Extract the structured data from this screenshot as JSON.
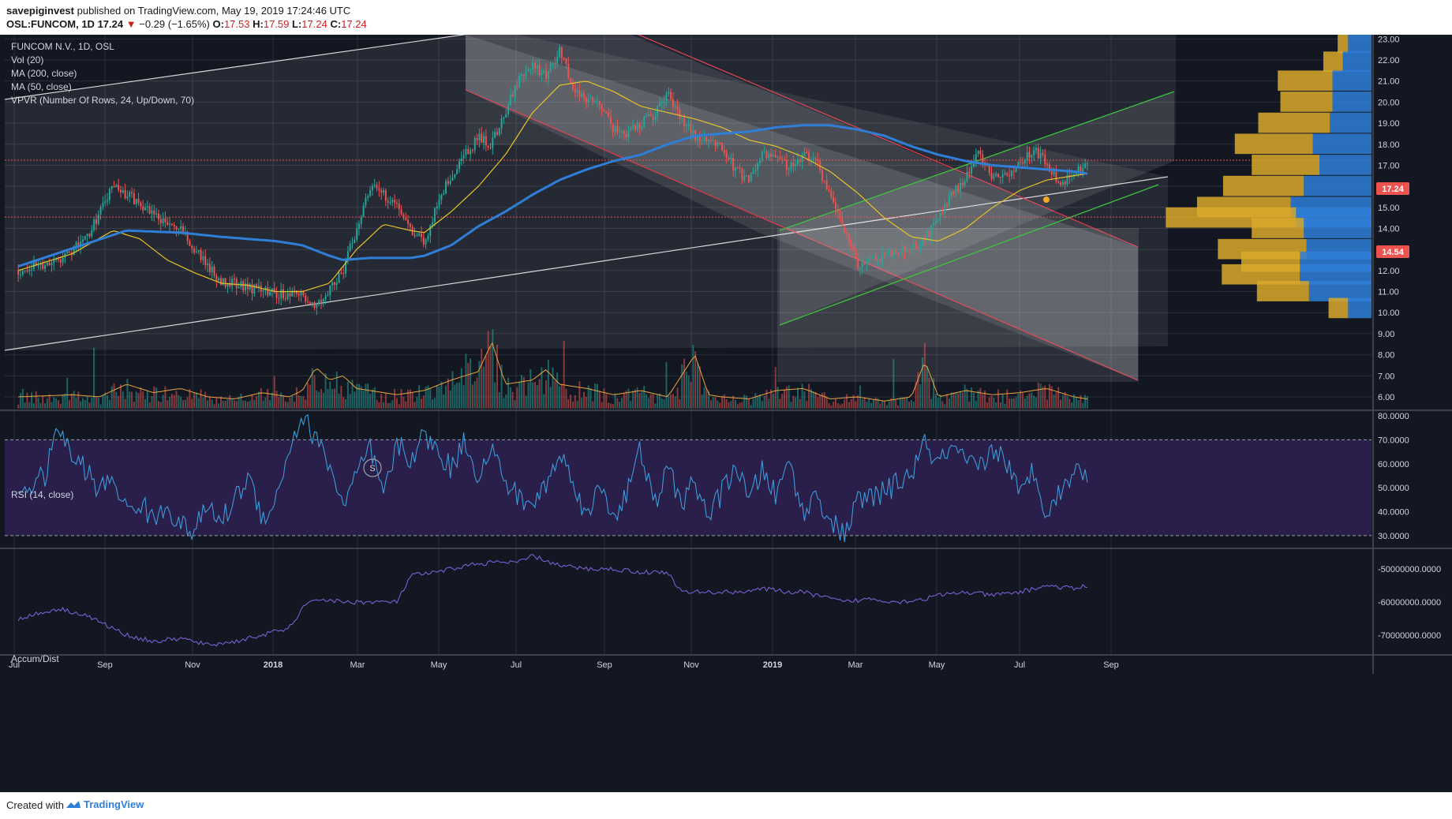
{
  "header": {
    "publisher": "savepiginvest",
    "published_text": "published on TradingView.com, May 19, 2019 17:24:46 UTC",
    "symbol_line": "OSL:FUNCOM, 1D",
    "last": "17.24",
    "change": "−0.29 (−1.65%)",
    "ohlc": {
      "o_label": "O:",
      "o": "17.53",
      "h_label": "H:",
      "h": "17.59",
      "l_label": "L:",
      "l": "17.24",
      "c_label": "C:",
      "c": "17.24"
    }
  },
  "legend": [
    "FUNCOM N.V., 1D, OSL",
    "Vol (20)",
    "MA (200, close)",
    "MA (50, close)",
    "VPVR (Number Of Rows, 24, Up/Down, 70)"
  ],
  "rsi_label": "RSI (14, close)",
  "ad_label": "Accum/Dist",
  "footer": {
    "created": "Created with",
    "brand": "TradingView"
  },
  "colors": {
    "background": "#131722",
    "up": "#26a69a",
    "down": "#ef5350",
    "ma200": "#2f7fd8",
    "ma50": "#e6c229",
    "vol_ma": "#e8a33d",
    "rsi": "#3d9ad9",
    "rsi_band": "#2a1f4a",
    "ad": "#7b5fd6",
    "vpvr_up": "#2f7fd8",
    "vpvr_down": "#d9a92a",
    "red_channel": "#e0394b",
    "green_channel": "#3ec43e"
  },
  "badges": {
    "current": "17.24",
    "poc": "14.54"
  },
  "marker_glyph": "S",
  "chart_data": {
    "type": "candlestick",
    "x_ticks": [
      "Jul",
      "Sep",
      "Nov",
      "2018",
      "Mar",
      "May",
      "Jul",
      "Sep",
      "Nov",
      "2019",
      "Mar",
      "May",
      "Jul",
      "Sep"
    ],
    "price_axis": {
      "min": 5.4,
      "max": 23.2,
      "ticks": [
        "23.00",
        "22.00",
        "21.00",
        "20.00",
        "19.00",
        "18.00",
        "17.00",
        "16.00",
        "15.00",
        "14.00",
        "13.00",
        "12.00",
        "11.00",
        "10.00",
        "9.00",
        "8.00",
        "7.00",
        "6.00"
      ]
    },
    "price_path": [
      [
        0,
        12.0
      ],
      [
        3,
        12.5
      ],
      [
        5,
        13.5
      ],
      [
        7,
        16.0
      ],
      [
        9,
        15.2
      ],
      [
        11,
        14.2
      ],
      [
        12,
        13.9
      ],
      [
        13,
        13.0
      ],
      [
        15,
        11.5
      ],
      [
        17,
        11.2
      ],
      [
        19,
        10.9
      ],
      [
        21,
        10.8
      ],
      [
        22,
        10.4
      ],
      [
        23,
        11.1
      ],
      [
        24,
        12.0
      ],
      [
        25,
        14.0
      ],
      [
        26,
        16.0
      ],
      [
        28,
        15.2
      ],
      [
        29,
        14.0
      ],
      [
        30,
        13.3
      ],
      [
        31,
        15.3
      ],
      [
        32,
        16.5
      ],
      [
        33,
        17.5
      ],
      [
        34,
        18.3
      ],
      [
        35,
        18.0
      ],
      [
        36,
        19.6
      ],
      [
        37,
        21.0
      ],
      [
        38,
        21.8
      ],
      [
        39,
        21.2
      ],
      [
        40,
        22.5
      ],
      [
        41,
        20.6
      ],
      [
        42,
        20.2
      ],
      [
        43,
        20.0
      ],
      [
        44,
        18.7
      ],
      [
        45,
        18.5
      ],
      [
        46,
        19.0
      ],
      [
        47,
        19.3
      ],
      [
        48,
        20.5
      ],
      [
        49,
        19.2
      ],
      [
        50,
        18.4
      ],
      [
        51,
        18.3
      ],
      [
        52,
        17.8
      ],
      [
        53,
        16.8
      ],
      [
        54,
        16.2
      ],
      [
        55,
        17.7
      ],
      [
        56,
        17.3
      ],
      [
        57,
        16.9
      ],
      [
        58,
        17.5
      ],
      [
        59,
        17.1
      ],
      [
        60,
        15.6
      ],
      [
        61,
        14.0
      ],
      [
        62,
        12.2
      ],
      [
        63,
        12.5
      ],
      [
        64,
        12.6
      ],
      [
        65,
        13.0
      ],
      [
        66,
        13.0
      ],
      [
        67,
        13.5
      ],
      [
        68,
        14.4
      ],
      [
        69,
        15.6
      ],
      [
        70,
        16.4
      ],
      [
        71,
        17.6
      ],
      [
        72,
        16.3
      ],
      [
        73,
        16.6
      ],
      [
        74,
        17.0
      ],
      [
        75,
        17.8
      ],
      [
        76,
        17.1
      ],
      [
        77,
        16.2
      ],
      [
        78,
        16.6
      ],
      [
        79,
        17.2
      ]
    ],
    "ma200_path": [
      [
        0,
        12.2
      ],
      [
        8,
        13.9
      ],
      [
        12,
        13.8
      ],
      [
        15,
        13.6
      ],
      [
        17,
        13.5
      ],
      [
        19,
        13.4
      ],
      [
        21,
        13.2
      ],
      [
        23,
        12.7
      ],
      [
        24,
        12.5
      ],
      [
        26,
        12.6
      ],
      [
        29,
        12.6
      ],
      [
        30,
        12.7
      ],
      [
        32,
        13.2
      ],
      [
        34,
        14.1
      ],
      [
        36,
        14.8
      ],
      [
        38,
        15.6
      ],
      [
        40,
        16.3
      ],
      [
        42,
        16.8
      ],
      [
        44,
        17.2
      ],
      [
        46,
        17.5
      ],
      [
        48,
        18.0
      ],
      [
        50,
        18.4
      ],
      [
        52,
        18.5
      ],
      [
        54,
        18.6
      ],
      [
        56,
        18.8
      ],
      [
        58,
        18.9
      ],
      [
        60,
        18.9
      ],
      [
        62,
        18.7
      ],
      [
        64,
        18.4
      ],
      [
        66,
        17.9
      ],
      [
        68,
        17.5
      ],
      [
        70,
        17.2
      ],
      [
        72,
        17.0
      ],
      [
        74,
        16.9
      ],
      [
        76,
        16.8
      ],
      [
        78,
        16.7
      ],
      [
        79,
        16.6
      ]
    ],
    "ma50_path": [
      [
        0,
        12.0
      ],
      [
        4,
        12.8
      ],
      [
        7,
        13.9
      ],
      [
        9,
        13.5
      ],
      [
        11,
        12.5
      ],
      [
        13,
        11.9
      ],
      [
        15,
        11.4
      ],
      [
        17,
        11.3
      ],
      [
        19,
        11.0
      ],
      [
        21,
        11.0
      ],
      [
        23,
        11.4
      ],
      [
        25,
        13.0
      ],
      [
        27,
        14.2
      ],
      [
        29,
        13.9
      ],
      [
        30,
        13.8
      ],
      [
        32,
        14.8
      ],
      [
        34,
        16.0
      ],
      [
        36,
        17.5
      ],
      [
        38,
        19.5
      ],
      [
        40,
        20.8
      ],
      [
        42,
        21.0
      ],
      [
        44,
        20.5
      ],
      [
        46,
        19.8
      ],
      [
        48,
        19.5
      ],
      [
        50,
        19.2
      ],
      [
        52,
        18.8
      ],
      [
        54,
        18.2
      ],
      [
        56,
        17.9
      ],
      [
        58,
        17.4
      ],
      [
        60,
        16.7
      ],
      [
        62,
        15.7
      ],
      [
        64,
        14.5
      ],
      [
        66,
        13.6
      ],
      [
        68,
        13.4
      ],
      [
        70,
        14.0
      ],
      [
        72,
        15.0
      ],
      [
        74,
        15.8
      ],
      [
        76,
        16.3
      ],
      [
        78,
        16.5
      ],
      [
        79,
        16.6
      ]
    ],
    "volume_path": [
      [
        0,
        6.0
      ],
      [
        4,
        6.1
      ],
      [
        6,
        6.0
      ],
      [
        8,
        6.6
      ],
      [
        10,
        6.2
      ],
      [
        12,
        6.4
      ],
      [
        14,
        6.0
      ],
      [
        16,
        5.9
      ],
      [
        18,
        6.2
      ],
      [
        20,
        6.0
      ],
      [
        21,
        6.3
      ],
      [
        22,
        7.4
      ],
      [
        23,
        6.8
      ],
      [
        24,
        7.0
      ],
      [
        25,
        6.4
      ],
      [
        26,
        6.3
      ],
      [
        28,
        6.1
      ],
      [
        30,
        6.3
      ],
      [
        32,
        6.8
      ],
      [
        34,
        7.2
      ],
      [
        35,
        8.6
      ],
      [
        36,
        6.6
      ],
      [
        38,
        6.8
      ],
      [
        39,
        7.3
      ],
      [
        40,
        6.6
      ],
      [
        42,
        6.4
      ],
      [
        44,
        6.1
      ],
      [
        46,
        6.3
      ],
      [
        48,
        6.0
      ],
      [
        50,
        8.0
      ],
      [
        51,
        6.1
      ],
      [
        52,
        6.0
      ],
      [
        54,
        5.9
      ],
      [
        56,
        6.3
      ],
      [
        58,
        6.4
      ],
      [
        60,
        5.9
      ],
      [
        62,
        6.0
      ],
      [
        64,
        5.8
      ],
      [
        66,
        6.0
      ],
      [
        67,
        7.7
      ],
      [
        68,
        6.0
      ],
      [
        70,
        6.3
      ],
      [
        72,
        6.1
      ],
      [
        74,
        6.2
      ],
      [
        76,
        6.4
      ],
      [
        78,
        6.0
      ],
      [
        79,
        5.9
      ]
    ],
    "rsi": {
      "min": 25,
      "max": 82,
      "upper": 70,
      "lower": 30,
      "ticks": [
        "80.0000",
        "70.0000",
        "60.0000",
        "50.0000",
        "40.0000",
        "30.0000"
      ],
      "path": [
        [
          0,
          48
        ],
        [
          2,
          55
        ],
        [
          3,
          76
        ],
        [
          4,
          62
        ],
        [
          5,
          58
        ],
        [
          6,
          48
        ],
        [
          7,
          55
        ],
        [
          8,
          40
        ],
        [
          9,
          44
        ],
        [
          10,
          36
        ],
        [
          11,
          43
        ],
        [
          12,
          34
        ],
        [
          13,
          32
        ],
        [
          14,
          42
        ],
        [
          15,
          36
        ],
        [
          16,
          45
        ],
        [
          17,
          55
        ],
        [
          18,
          38
        ],
        [
          19,
          44
        ],
        [
          20,
          66
        ],
        [
          21,
          80
        ],
        [
          22,
          70
        ],
        [
          23,
          60
        ],
        [
          24,
          42
        ],
        [
          25,
          55
        ],
        [
          26,
          66
        ],
        [
          27,
          46
        ],
        [
          28,
          68
        ],
        [
          29,
          62
        ],
        [
          30,
          72
        ],
        [
          31,
          65
        ],
        [
          32,
          58
        ],
        [
          33,
          70
        ],
        [
          34,
          55
        ],
        [
          35,
          66
        ],
        [
          36,
          52
        ],
        [
          37,
          46
        ],
        [
          38,
          42
        ],
        [
          39,
          52
        ],
        [
          40,
          63
        ],
        [
          41,
          55
        ],
        [
          42,
          36
        ],
        [
          43,
          52
        ],
        [
          44,
          38
        ],
        [
          45,
          48
        ],
        [
          46,
          66
        ],
        [
          47,
          42
        ],
        [
          48,
          58
        ],
        [
          49,
          44
        ],
        [
          50,
          52
        ],
        [
          51,
          38
        ],
        [
          52,
          48
        ],
        [
          53,
          60
        ],
        [
          54,
          44
        ],
        [
          55,
          58
        ],
        [
          56,
          46
        ],
        [
          57,
          62
        ],
        [
          58,
          38
        ],
        [
          59,
          48
        ],
        [
          60,
          36
        ],
        [
          61,
          30
        ],
        [
          62,
          44
        ],
        [
          63,
          46
        ],
        [
          64,
          48
        ],
        [
          65,
          52
        ],
        [
          66,
          56
        ],
        [
          67,
          68
        ],
        [
          68,
          60
        ],
        [
          69,
          66
        ],
        [
          70,
          60
        ],
        [
          71,
          58
        ],
        [
          72,
          66
        ],
        [
          73,
          62
        ],
        [
          74,
          46
        ],
        [
          75,
          58
        ],
        [
          76,
          40
        ],
        [
          77,
          48
        ],
        [
          78,
          58
        ],
        [
          79,
          54
        ]
      ]
    },
    "ad": {
      "min": -76000000,
      "max": -44000000,
      "ticks": [
        "-50000000.0000",
        "-60000000.0000",
        "-70000000.0000"
      ],
      "path": [
        [
          0,
          -65000000
        ],
        [
          3,
          -62000000
        ],
        [
          5,
          -64000000
        ],
        [
          8,
          -70000000
        ],
        [
          10,
          -72000000
        ],
        [
          12,
          -71000000
        ],
        [
          14,
          -73000000
        ],
        [
          16,
          -72000000
        ],
        [
          18,
          -70000000
        ],
        [
          20,
          -68000000
        ],
        [
          21,
          -62000000
        ],
        [
          22,
          -59000000
        ],
        [
          24,
          -60000000
        ],
        [
          26,
          -60000000
        ],
        [
          28,
          -60000000
        ],
        [
          29,
          -52000000
        ],
        [
          31,
          -51000000
        ],
        [
          33,
          -49000000
        ],
        [
          35,
          -48000000
        ],
        [
          37,
          -48000000
        ],
        [
          38,
          -46000000
        ],
        [
          40,
          -49000000
        ],
        [
          42,
          -50000000
        ],
        [
          44,
          -50000000
        ],
        [
          46,
          -51000000
        ],
        [
          48,
          -51000000
        ],
        [
          49,
          -57000000
        ],
        [
          51,
          -57000000
        ],
        [
          53,
          -57000000
        ],
        [
          55,
          -56000000
        ],
        [
          57,
          -57000000
        ],
        [
          58,
          -57000000
        ],
        [
          60,
          -59000000
        ],
        [
          61,
          -60000000
        ],
        [
          63,
          -59000000
        ],
        [
          65,
          -60000000
        ],
        [
          67,
          -59000000
        ],
        [
          68,
          -58000000
        ],
        [
          70,
          -57000000
        ],
        [
          72,
          -58000000
        ],
        [
          74,
          -57000000
        ],
        [
          76,
          -55000000
        ],
        [
          78,
          -56000000
        ],
        [
          79,
          -55000000
        ]
      ]
    },
    "vpvr": [
      {
        "price": 22.8,
        "up": 0.18,
        "down": 0.08
      },
      {
        "price": 21.9,
        "up": 0.22,
        "down": 0.15
      },
      {
        "price": 21.0,
        "up": 0.3,
        "down": 0.42
      },
      {
        "price": 20.0,
        "up": 0.3,
        "down": 0.4
      },
      {
        "price": 19.0,
        "up": 0.32,
        "down": 0.55
      },
      {
        "price": 18.0,
        "up": 0.45,
        "down": 0.6
      },
      {
        "price": 17.0,
        "up": 0.4,
        "down": 0.52
      },
      {
        "price": 16.0,
        "up": 0.52,
        "down": 0.62
      },
      {
        "price": 15.0,
        "up": 0.62,
        "down": 0.72
      },
      {
        "price": 14.5,
        "up": 0.58,
        "down": 1.0
      },
      {
        "price": 14.0,
        "up": 0.52,
        "down": 0.4
      },
      {
        "price": 13.0,
        "up": 0.5,
        "down": 0.68
      },
      {
        "price": 12.4,
        "up": 0.55,
        "down": 0.45
      },
      {
        "price": 11.8,
        "up": 0.55,
        "down": 0.6
      },
      {
        "price": 11.0,
        "up": 0.48,
        "down": 0.4
      },
      {
        "price": 10.2,
        "up": 0.18,
        "down": 0.15
      }
    ],
    "hlines": [
      17.24,
      14.54
    ],
    "current_price": 17.24,
    "poc_price": 14.54
  }
}
